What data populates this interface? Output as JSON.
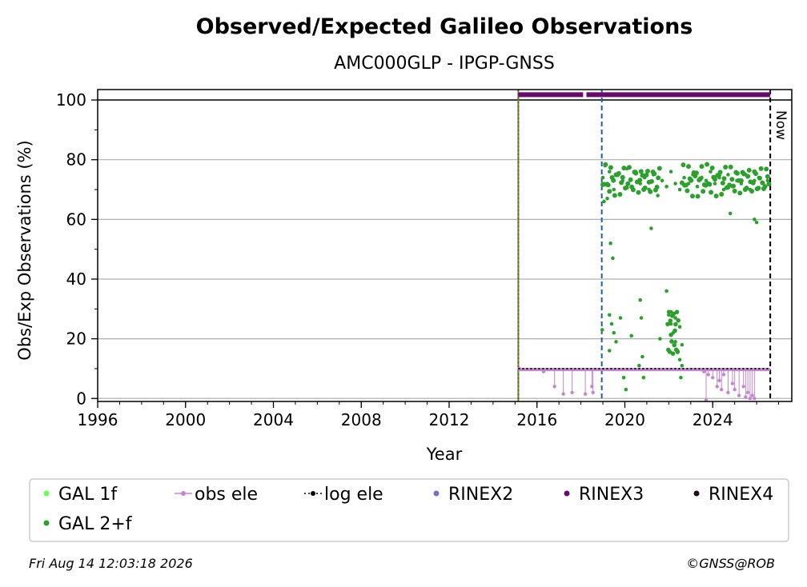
{
  "chart_data": {
    "type": "scatter",
    "title": "Observed/Expected Galileo Observations",
    "subtitle": "AMC000GLP - IPGP-GNSS",
    "xlabel": "Year",
    "ylabel": "Obs/Exp Observations (%)",
    "xlim": [
      1996,
      2027.6
    ],
    "ylim": [
      -1,
      103.5
    ],
    "x_ticks": [
      1996,
      2000,
      2004,
      2008,
      2012,
      2016,
      2020,
      2024
    ],
    "y_ticks": [
      0,
      20,
      40,
      60,
      80,
      100
    ],
    "grid": "horizontal",
    "legend_position": "bottom",
    "reference_line": 100,
    "vertical_markers": [
      {
        "x": 2015.15,
        "color": "#2ca02c",
        "style": "solid"
      },
      {
        "x": 2015.15,
        "color": "#d62728",
        "style": "dotted"
      },
      {
        "x": 2018.95,
        "color": "#1f5fa8",
        "style": "dashed"
      },
      {
        "x": 2026.62,
        "color": "#000000",
        "style": "dashed",
        "label": "Now"
      }
    ],
    "rinex3_bar": {
      "x_start": 2015.15,
      "x_end": 2026.62,
      "y": 101.8,
      "gap": [
        2018.1,
        2018.25
      ]
    },
    "series": [
      {
        "name": "GAL 1f",
        "color": "#66ff55",
        "points": []
      },
      {
        "name": "GAL 2+f",
        "color": "#2ca02c",
        "points": [
          [
            2019.0,
            74
          ],
          [
            2019.1,
            78
          ],
          [
            2019.2,
            72
          ],
          [
            2019.3,
            76
          ],
          [
            2019.5,
            70
          ],
          [
            2019.7,
            75
          ],
          [
            2019.9,
            73
          ],
          [
            2020.1,
            77
          ],
          [
            2020.3,
            71
          ],
          [
            2020.5,
            76
          ],
          [
            2020.7,
            72
          ],
          [
            2020.9,
            74
          ],
          [
            2021.1,
            70
          ],
          [
            2021.3,
            75
          ],
          [
            2021.5,
            68
          ],
          [
            2021.7,
            73
          ],
          [
            2021.9,
            71
          ],
          [
            2022.1,
            76
          ],
          [
            2022.3,
            72
          ],
          [
            2022.5,
            70
          ],
          [
            2022.7,
            74
          ],
          [
            2022.9,
            72
          ],
          [
            2023.1,
            75
          ],
          [
            2023.3,
            71
          ],
          [
            2023.5,
            74
          ],
          [
            2023.7,
            73
          ],
          [
            2023.9,
            76
          ],
          [
            2024.1,
            72
          ],
          [
            2024.3,
            74
          ],
          [
            2024.5,
            70
          ],
          [
            2024.7,
            75
          ],
          [
            2024.9,
            71
          ],
          [
            2025.1,
            73
          ],
          [
            2025.3,
            72
          ],
          [
            2025.5,
            75
          ],
          [
            2025.7,
            70
          ],
          [
            2025.9,
            73
          ],
          [
            2026.1,
            74
          ],
          [
            2026.3,
            72
          ],
          [
            2026.5,
            73
          ],
          [
            2019.35,
            52
          ],
          [
            2019.45,
            47
          ],
          [
            2019.3,
            28
          ],
          [
            2019.4,
            25
          ],
          [
            2019.5,
            22
          ],
          [
            2019.6,
            19
          ],
          [
            2019.3,
            16
          ],
          [
            2019.8,
            27
          ],
          [
            2020.05,
            3
          ],
          [
            2020.3,
            21
          ],
          [
            2020.7,
            33
          ],
          [
            2020.8,
            14
          ],
          [
            2020.75,
            27
          ],
          [
            2021.2,
            57
          ],
          [
            2021.6,
            20
          ],
          [
            2021.9,
            36
          ],
          [
            2022.0,
            28
          ],
          [
            2022.1,
            25
          ],
          [
            2022.2,
            22
          ],
          [
            2022.3,
            19
          ],
          [
            2022.4,
            16
          ],
          [
            2022.5,
            13
          ],
          [
            2022.1,
            29
          ],
          [
            2022.3,
            27
          ],
          [
            2022.5,
            24
          ],
          [
            2022.6,
            18
          ],
          [
            2022.55,
            7
          ],
          [
            2022.6,
            11
          ],
          [
            2020.65,
            11
          ],
          [
            2020.85,
            7
          ],
          [
            2019.95,
            7
          ],
          [
            2024.8,
            62
          ],
          [
            2025.9,
            60
          ],
          [
            2026.0,
            59
          ],
          [
            2018.97,
            23
          ],
          [
            2019.05,
            66
          ],
          [
            2019.2,
            67
          ]
        ]
      },
      {
        "name": "obs ele",
        "color": "#c586d0",
        "points": [
          [
            2015.2,
            10
          ],
          [
            2016.3,
            9
          ],
          [
            2016.8,
            4
          ],
          [
            2017.2,
            1.5
          ],
          [
            2017.6,
            2
          ],
          [
            2018.2,
            1.5
          ],
          [
            2018.5,
            4
          ],
          [
            2018.55,
            2
          ],
          [
            2023.6,
            9
          ],
          [
            2023.7,
            -0.5
          ],
          [
            2023.8,
            8
          ],
          [
            2024.0,
            7
          ],
          [
            2024.2,
            4
          ],
          [
            2024.3,
            6
          ],
          [
            2024.4,
            3
          ],
          [
            2024.5,
            8
          ],
          [
            2024.7,
            2
          ],
          [
            2024.9,
            5
          ],
          [
            2025.0,
            3
          ],
          [
            2025.2,
            1
          ],
          [
            2025.4,
            4
          ],
          [
            2025.5,
            0.5
          ],
          [
            2025.6,
            2
          ],
          [
            2025.7,
            0
          ],
          [
            2025.8,
            1
          ],
          [
            2025.9,
            0
          ]
        ]
      },
      {
        "name": "log ele",
        "color": "#000000",
        "points": [
          [
            2015.15,
            10
          ],
          [
            2026.62,
            10
          ]
        ]
      },
      {
        "name": "RINEX2",
        "color": "#7b6fba",
        "points": []
      },
      {
        "name": "RINEX3",
        "color": "#6b0a6e",
        "points": []
      },
      {
        "name": "RINEX4",
        "color": "#200a18",
        "points": []
      }
    ]
  },
  "footer": {
    "timestamp": "Fri Aug 14 12:03:18 2026",
    "credit": "©GNSS@ROB"
  },
  "now_label": "Now"
}
